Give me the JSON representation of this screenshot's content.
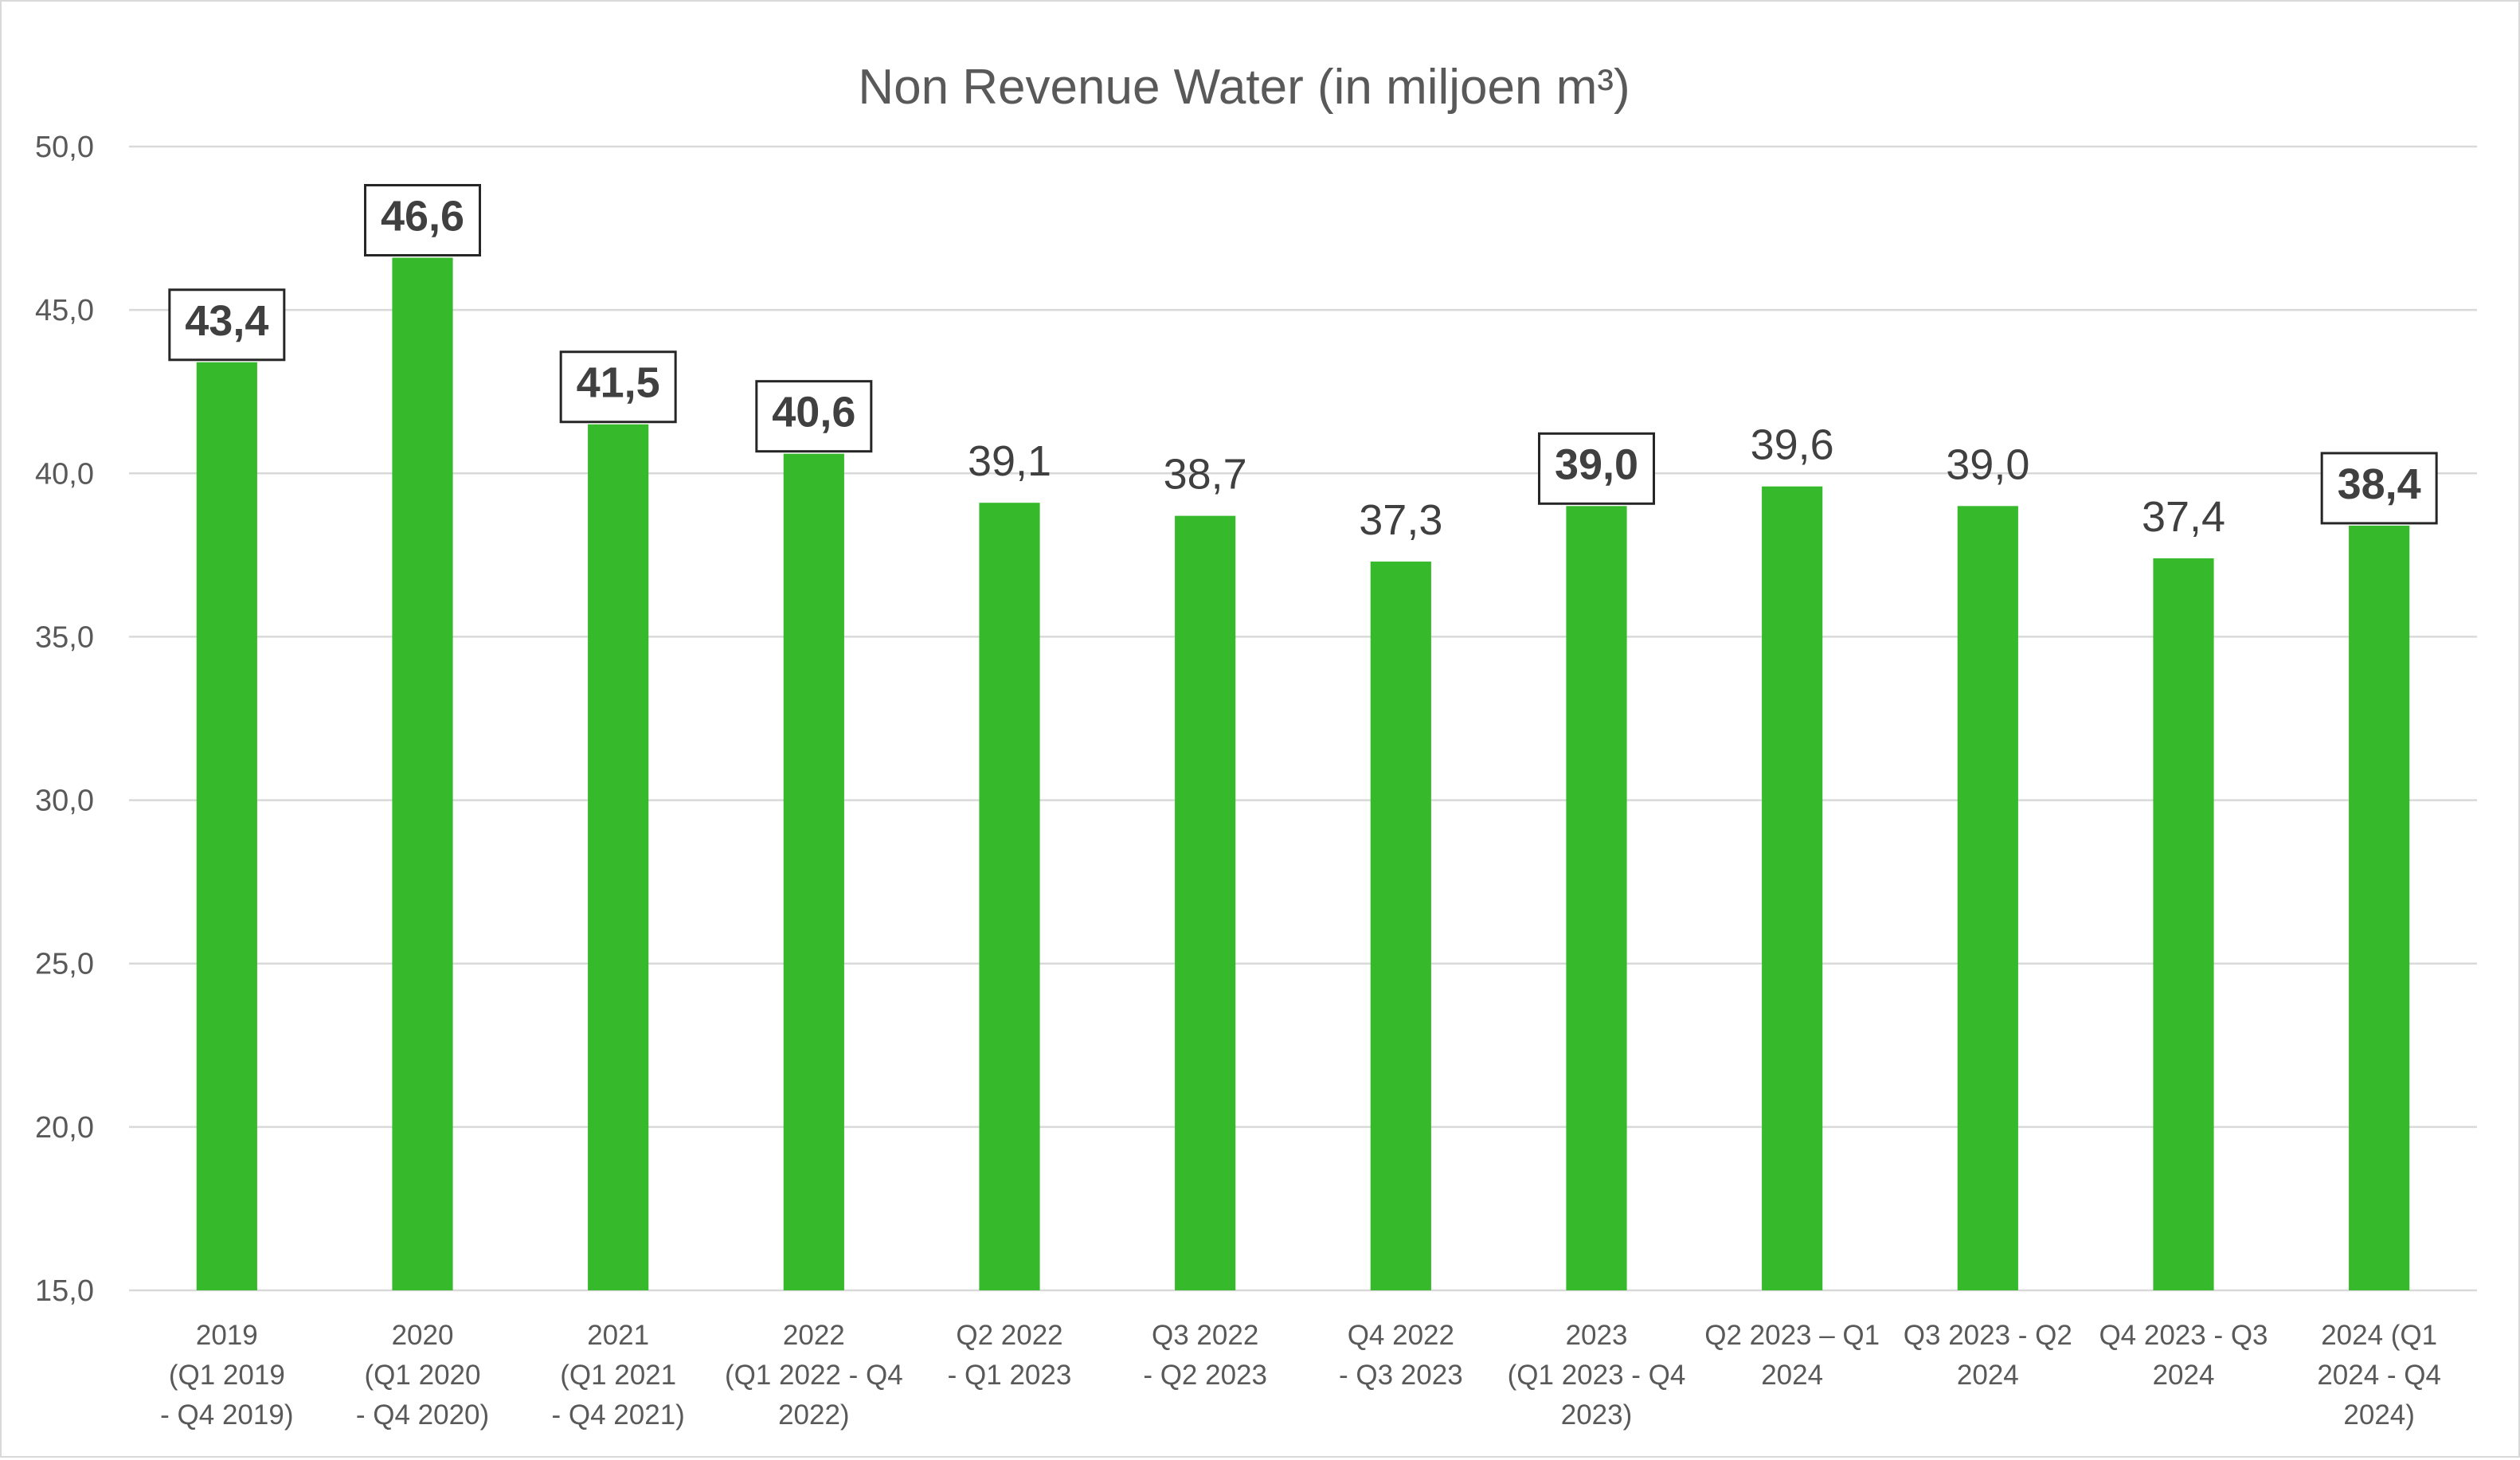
{
  "chart_data": {
    "type": "bar",
    "title": "Non Revenue Water (in miljoen m³)",
    "xlabel": "",
    "ylabel": "",
    "ylim": [
      15,
      50
    ],
    "y_ticks": [
      "15,0",
      "20,0",
      "25,0",
      "30,0",
      "35,0",
      "40,0",
      "45,0",
      "50,0"
    ],
    "grid": true,
    "legend": "none",
    "bar_color": "#36b92b",
    "categories": [
      [
        "2019",
        "(Q1 2019",
        "- Q4 2019)"
      ],
      [
        "2020",
        "(Q1 2020",
        "- Q4 2020)"
      ],
      [
        "2021",
        "(Q1 2021",
        "- Q4 2021)"
      ],
      [
        "2022",
        "(Q1 2022 - Q4",
        "2022)"
      ],
      [
        "Q2 2022",
        "- Q1 2023"
      ],
      [
        "Q3 2022",
        "- Q2 2023"
      ],
      [
        "Q4 2022",
        "- Q3 2023"
      ],
      [
        "2023",
        "(Q1 2023 - Q4",
        "2023)"
      ],
      [
        "Q2 2023 – Q1",
        "2024"
      ],
      [
        "Q3 2023 - Q2",
        "2024"
      ],
      [
        "Q4 2023 - Q3",
        "2024"
      ],
      [
        "2024 (Q1",
        "2024 - Q4",
        "2024)"
      ]
    ],
    "values": [
      43.4,
      46.6,
      41.5,
      40.6,
      39.1,
      38.7,
      37.3,
      39.0,
      39.6,
      39.0,
      37.4,
      38.4
    ],
    "data_labels": [
      "43,4",
      "46,6",
      "41,5",
      "40,6",
      "39,1",
      "38,7",
      "37,3",
      "39,0",
      "39,6",
      "39,0",
      "37,4",
      "38,4"
    ],
    "boxed_labels": [
      true,
      true,
      true,
      true,
      false,
      false,
      false,
      true,
      false,
      false,
      false,
      true
    ]
  }
}
